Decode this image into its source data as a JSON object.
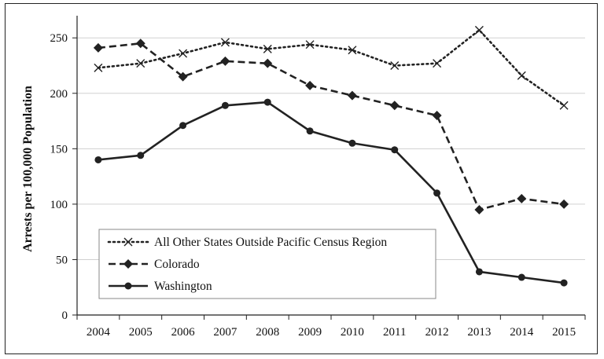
{
  "chart_data": {
    "type": "line",
    "ylabel": "Arrests per 100,000 Population",
    "xlabel": "",
    "title": "",
    "x": [
      "2004",
      "2005",
      "2006",
      "2007",
      "2008",
      "2009",
      "2010",
      "2011",
      "2012",
      "2013",
      "2014",
      "2015"
    ],
    "ylim": [
      0,
      270
    ],
    "yticks": [
      0,
      50,
      100,
      150,
      200,
      250
    ],
    "grid": "horizontal",
    "legend_position": "bottom-left",
    "series": [
      {
        "name": "All Other States Outside Pacific Census Region",
        "style": "dotted",
        "marker": "x",
        "values": [
          223,
          227,
          236,
          246,
          240,
          244,
          239,
          225,
          227,
          257,
          216,
          189
        ]
      },
      {
        "name": "Colorado",
        "style": "dashed",
        "marker": "diamond",
        "values": [
          241,
          245,
          215,
          229,
          227,
          207,
          198,
          189,
          180,
          95,
          105,
          100
        ]
      },
      {
        "name": "Washington",
        "style": "solid",
        "marker": "circle",
        "values": [
          140,
          144,
          171,
          189,
          192,
          166,
          155,
          149,
          110,
          39,
          34,
          29
        ]
      }
    ]
  }
}
